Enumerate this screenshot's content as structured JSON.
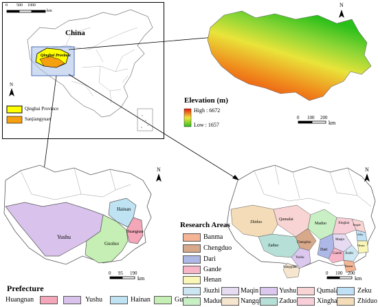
{
  "china_panel": {
    "scale_ticks": [
      "0",
      "500",
      "1000"
    ],
    "scale_unit": "km",
    "country_label": "China",
    "north": "N",
    "province_label": "Qinghai Province",
    "region_label": "Sanjiangyuan",
    "legend": [
      {
        "label": "Qinghai Province",
        "color": "#ffff00"
      },
      {
        "label": "Sanjiangyuan",
        "color": "#f5a010"
      }
    ]
  },
  "elevation_panel": {
    "north": "N",
    "title": "Elevation (m)",
    "high_label": "High : 6672",
    "low_label": "Low : 1657",
    "high_color": "#e8170c",
    "low_color": "#2bbf1a",
    "scale_ticks": [
      "0",
      "100",
      "200"
    ],
    "scale_unit": "km"
  },
  "prefecture_panel": {
    "north": "N",
    "map_labels": {
      "yushu": "Yushu",
      "hainan": "Hainan",
      "huangnan": "Huangnan",
      "guoluo": "Guoluo"
    },
    "scale_ticks": [
      "0",
      "95",
      "190"
    ],
    "scale_unit": "km",
    "legend_title": "Prefecture",
    "legend": [
      {
        "label": "Huangnan",
        "color": "#f4a7b9"
      },
      {
        "label": "Yushu",
        "color": "#d9c3ec"
      },
      {
        "label": "Hainan",
        "color": "#bfe3f3"
      },
      {
        "label": "Guoluo",
        "color": "#c6efb5"
      }
    ]
  },
  "research_panel": {
    "north": "N",
    "legend_title": "Research Areas",
    "map_labels": [
      "Zhiduo",
      "Qumalai",
      "Chengduo",
      "Maduo",
      "Zaduo",
      "Yushu",
      "Nangqian",
      "Dari",
      "Maqin",
      "Gande",
      "Jiuzhi",
      "Xinghai",
      "Tongde",
      "Zeku",
      "Henan",
      "Banma"
    ],
    "scale_ticks": [
      "0",
      "100",
      "200"
    ],
    "scale_unit": "km",
    "legend_left": [
      {
        "label": "Banma",
        "color": "#f5b595"
      },
      {
        "label": "Chengduo",
        "color": "#d7a88a"
      },
      {
        "label": "Dari",
        "color": "#aeb8e6"
      },
      {
        "label": "Gande",
        "color": "#f7b5c8"
      },
      {
        "label": "Henan",
        "color": "#f9f7b8"
      }
    ],
    "legend_grid": [
      {
        "label": "Jiuzhi",
        "color": "#cde7f2"
      },
      {
        "label": "Maqin",
        "color": "#e7dbf2"
      },
      {
        "label": "Yushu",
        "color": "#dcc8ef"
      },
      {
        "label": "Qumalai",
        "color": "#f8d4d4"
      },
      {
        "label": "Zeku",
        "color": "#bfe0f5"
      },
      {
        "label": "Maduo",
        "color": "#c9f0c5"
      },
      {
        "label": "Nangqian",
        "color": "#f6e6cf"
      },
      {
        "label": "Zaduo",
        "color": "#b6dfd8"
      },
      {
        "label": "Xinghai",
        "color": "#f8cfd8"
      },
      {
        "label": "Zhiduo",
        "color": "#f4dcb8"
      }
    ]
  }
}
